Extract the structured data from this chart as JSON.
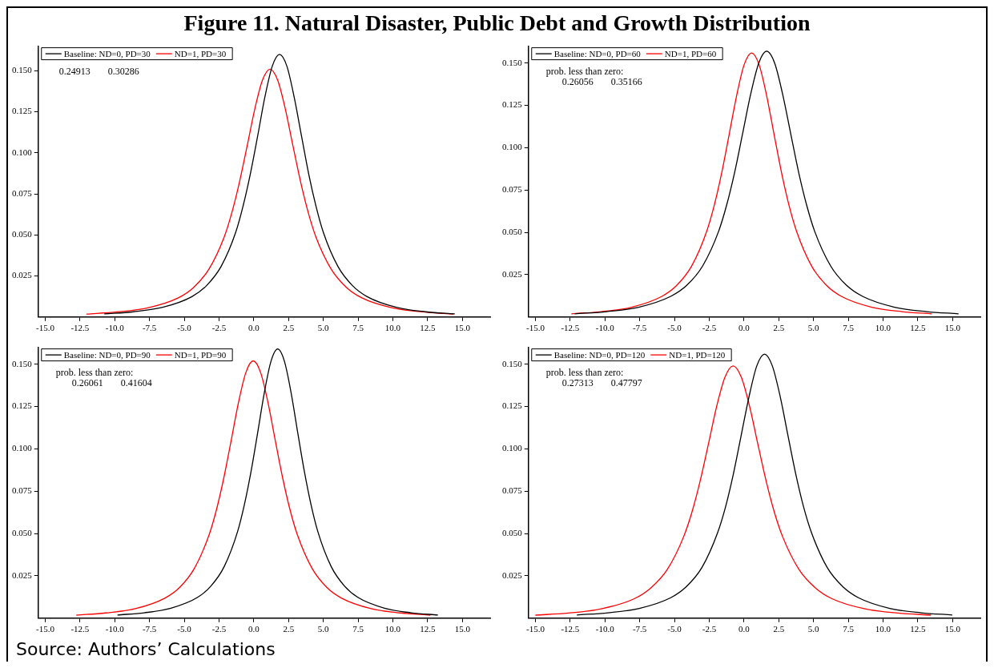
{
  "chart_data": [
    {
      "type": "line",
      "title": "Figure 11. Natural Disaster, Public Debt and Growth Distribution",
      "xlim": [
        -15.5,
        17
      ],
      "ylim": [
        0,
        0.165
      ],
      "xticks": [
        {
          "value": -15,
          "label": "-15.0"
        },
        {
          "value": -12.5,
          "label": "-12.5"
        },
        {
          "value": -10,
          "label": "-10.0"
        },
        {
          "value": -7.5,
          "label": "-7.5"
        },
        {
          "value": -5,
          "label": "-5.0"
        },
        {
          "value": -2.5,
          "label": "-2.5"
        },
        {
          "value": 0,
          "label": "0.0"
        },
        {
          "value": 2.5,
          "label": "2.5"
        },
        {
          "value": 5,
          "label": "5.0"
        },
        {
          "value": 7.5,
          "label": "7.5"
        },
        {
          "value": 10,
          "label": "10.0"
        },
        {
          "value": 12.5,
          "label": "12.5"
        },
        {
          "value": 15,
          "label": "15.0"
        }
      ],
      "yticks": [
        {
          "value": 0.025,
          "label": "0.025"
        },
        {
          "value": 0.05,
          "label": "0.050"
        },
        {
          "value": 0.075,
          "label": "0.075"
        },
        {
          "value": 0.1,
          "label": "0.100"
        },
        {
          "value": 0.125,
          "label": "0.125"
        },
        {
          "value": 0.15,
          "label": "0.150"
        }
      ],
      "grid": false,
      "legend": "top left",
      "marker": "none",
      "line_style": "solid",
      "annotations": [
        "0.24913",
        "0.30286"
      ],
      "series": [
        {
          "name": "Baseline: ND=0, PD=30",
          "color": "#000000",
          "x": [
            -10.75,
            -8.65,
            -6.55,
            -4.45,
            -3.4,
            -2.35,
            -1.3,
            -0.78,
            -0.25,
            0.28,
            0.8,
            1.33,
            1.85,
            2.38,
            2.9,
            3.43,
            3.95,
            4.48,
            5.0,
            6.05,
            7.1,
            8.15,
            10.25,
            12.35,
            14.45
          ],
          "values": [
            0.0019,
            0.0032,
            0.0059,
            0.0124,
            0.0191,
            0.0308,
            0.0516,
            0.0673,
            0.0871,
            0.1103,
            0.1341,
            0.1528,
            0.16,
            0.1528,
            0.1341,
            0.1103,
            0.0871,
            0.0673,
            0.0516,
            0.0308,
            0.0191,
            0.0124,
            0.0059,
            0.0032,
            0.0019
          ]
        },
        {
          "name": "ND=1, PD=30",
          "color": "#ff0000",
          "x": [
            -12.03,
            -9.83,
            -7.63,
            -5.43,
            -4.33,
            -3.23,
            -2.13,
            -1.58,
            -1.03,
            -0.48,
            0.07,
            0.62,
            1.17,
            1.72,
            2.27,
            2.82,
            3.37,
            3.92,
            4.47,
            5.57,
            6.67,
            7.77,
            9.97,
            12.17,
            14.37
          ],
          "values": [
            0.0018,
            0.0031,
            0.0056,
            0.0117,
            0.018,
            0.0291,
            0.0487,
            0.0635,
            0.0822,
            0.1041,
            0.1266,
            0.1442,
            0.151,
            0.1442,
            0.1266,
            0.1041,
            0.0822,
            0.0635,
            0.0487,
            0.0291,
            0.018,
            0.0117,
            0.0056,
            0.0031,
            0.0018
          ]
        }
      ]
    },
    {
      "type": "line",
      "xlim": [
        -15.5,
        17
      ],
      "ylim": [
        0,
        0.16
      ],
      "xticks": [
        {
          "value": -15,
          "label": "-15.0"
        },
        {
          "value": -12.5,
          "label": "-12.5"
        },
        {
          "value": -10,
          "label": "-10.0"
        },
        {
          "value": -7.5,
          "label": "-7.5"
        },
        {
          "value": -5,
          "label": "-5.0"
        },
        {
          "value": -2.5,
          "label": "-2.5"
        },
        {
          "value": 0,
          "label": "0.0"
        },
        {
          "value": 2.5,
          "label": "2.5"
        },
        {
          "value": 5,
          "label": "5.0"
        },
        {
          "value": 7.5,
          "label": "7.5"
        },
        {
          "value": 10,
          "label": "10.0"
        },
        {
          "value": 12.5,
          "label": "12.5"
        },
        {
          "value": 15,
          "label": "15.0"
        }
      ],
      "yticks": [
        {
          "value": 0.025,
          "label": "0.025"
        },
        {
          "value": 0.05,
          "label": "0.050"
        },
        {
          "value": 0.075,
          "label": "0.075"
        },
        {
          "value": 0.1,
          "label": "0.100"
        },
        {
          "value": 0.125,
          "label": "0.125"
        },
        {
          "value": 0.15,
          "label": "0.150"
        }
      ],
      "grid": false,
      "legend": "top left",
      "marker": "none",
      "line_style": "solid",
      "annotations": [
        "prob. less than zero:",
        "0.26056",
        "0.35166"
      ],
      "series": [
        {
          "name": "Baseline: ND=0, PD=60",
          "color": "#000000",
          "x": [
            -12.17,
            -9.87,
            -7.57,
            -5.27,
            -4.12,
            -2.97,
            -1.82,
            -1.25,
            -0.67,
            -0.1,
            0.48,
            1.06,
            1.63,
            2.21,
            2.78,
            3.36,
            3.93,
            4.51,
            5.08,
            6.23,
            7.38,
            8.53,
            10.83,
            13.13,
            15.43
          ],
          "values": [
            0.0019,
            0.0032,
            0.0058,
            0.0122,
            0.0187,
            0.0302,
            0.0507,
            0.066,
            0.0855,
            0.1083,
            0.1316,
            0.1499,
            0.157,
            0.1499,
            0.1316,
            0.1083,
            0.0855,
            0.066,
            0.0507,
            0.0302,
            0.0187,
            0.0122,
            0.0058,
            0.0032,
            0.0019
          ]
        },
        {
          "name": "ND=1, PD=60",
          "color": "#ff0000",
          "x": [
            -12.41,
            -10.25,
            -8.09,
            -5.93,
            -4.85,
            -3.77,
            -2.69,
            -2.15,
            -1.61,
            -1.07,
            -0.53,
            0.01,
            0.55,
            1.09,
            1.63,
            2.17,
            2.71,
            3.25,
            3.79,
            4.87,
            5.95,
            7.03,
            9.19,
            11.35,
            13.51
          ],
          "values": [
            0.0019,
            0.0032,
            0.0058,
            0.0121,
            0.0186,
            0.03,
            0.0504,
            0.0656,
            0.0849,
            0.1076,
            0.1307,
            0.149,
            0.156,
            0.149,
            0.1307,
            0.1076,
            0.0849,
            0.0656,
            0.0504,
            0.03,
            0.0186,
            0.0121,
            0.0058,
            0.0032,
            0.0019
          ]
        }
      ]
    },
    {
      "type": "line",
      "xlim": [
        -15.5,
        17
      ],
      "ylim": [
        0,
        0.16
      ],
      "xticks": [
        {
          "value": -15,
          "label": "-15.0"
        },
        {
          "value": -12.5,
          "label": "-12.5"
        },
        {
          "value": -10,
          "label": "-10.0"
        },
        {
          "value": -7.5,
          "label": "-7.5"
        },
        {
          "value": -5,
          "label": "-5.0"
        },
        {
          "value": -2.5,
          "label": "-2.5"
        },
        {
          "value": 0,
          "label": "0.0"
        },
        {
          "value": 2.5,
          "label": "2.5"
        },
        {
          "value": 5,
          "label": "5.0"
        },
        {
          "value": 7.5,
          "label": "7.5"
        },
        {
          "value": 10,
          "label": "10.0"
        },
        {
          "value": 12.5,
          "label": "12.5"
        },
        {
          "value": 15,
          "label": "15.0"
        }
      ],
      "yticks": [
        {
          "value": 0.025,
          "label": "0.025"
        },
        {
          "value": 0.05,
          "label": "0.050"
        },
        {
          "value": 0.075,
          "label": "0.075"
        },
        {
          "value": 0.1,
          "label": "0.100"
        },
        {
          "value": 0.125,
          "label": "0.125"
        },
        {
          "value": 0.15,
          "label": "0.150"
        }
      ],
      "grid": false,
      "legend": "top left",
      "marker": "none",
      "line_style": "solid",
      "annotations": [
        "prob. less than zero:",
        "0.26061",
        "0.41604"
      ],
      "series": [
        {
          "name": "Baseline: ND=0, PD=90",
          "color": "#000000",
          "x": [
            -9.8,
            -7.88,
            -5.96,
            -4.04,
            -3.08,
            -2.12,
            -1.16,
            -0.68,
            -0.2,
            0.28,
            0.76,
            1.24,
            1.72,
            2.2,
            2.68,
            3.16,
            3.64,
            4.12,
            4.6,
            5.56,
            6.52,
            7.48,
            9.4,
            11.32,
            13.24
          ],
          "values": [
            0.0019,
            0.0032,
            0.0059,
            0.0123,
            0.019,
            0.0306,
            0.0513,
            0.0669,
            0.0865,
            0.1096,
            0.1333,
            0.1518,
            0.159,
            0.1518,
            0.1333,
            0.1096,
            0.0865,
            0.0669,
            0.0513,
            0.0306,
            0.019,
            0.0123,
            0.0059,
            0.0032,
            0.0019
          ]
        },
        {
          "name": "ND=1, PD=90",
          "color": "#ff0000",
          "x": [
            -12.76,
            -10.64,
            -8.52,
            -6.4,
            -5.34,
            -4.28,
            -3.22,
            -2.69,
            -2.16,
            -1.63,
            -1.1,
            -0.57,
            -0.04,
            0.49,
            1.02,
            1.55,
            2.08,
            2.61,
            3.14,
            4.2,
            5.26,
            6.32,
            8.44,
            10.56,
            12.68
          ],
          "values": [
            0.0018,
            0.0031,
            0.0056,
            0.0118,
            0.0181,
            0.0293,
            0.0491,
            0.0639,
            0.0827,
            0.1048,
            0.1274,
            0.1451,
            0.152,
            0.1451,
            0.1274,
            0.1048,
            0.0827,
            0.0639,
            0.0491,
            0.0293,
            0.0181,
            0.0118,
            0.0056,
            0.0031,
            0.0018
          ]
        }
      ]
    },
    {
      "type": "line",
      "xlim": [
        -15.5,
        17
      ],
      "ylim": [
        0,
        0.16
      ],
      "xticks": [
        {
          "value": -15,
          "label": "-15.0"
        },
        {
          "value": -12.5,
          "label": "-12.5"
        },
        {
          "value": -10,
          "label": "-10.0"
        },
        {
          "value": -7.5,
          "label": "-7.5"
        },
        {
          "value": -5,
          "label": "-5.0"
        },
        {
          "value": -2.5,
          "label": "-2.5"
        },
        {
          "value": 0,
          "label": "0.0"
        },
        {
          "value": 2.5,
          "label": "2.5"
        },
        {
          "value": 5,
          "label": "5.0"
        },
        {
          "value": 7.5,
          "label": "7.5"
        },
        {
          "value": 10,
          "label": "10.0"
        },
        {
          "value": 12.5,
          "label": "12.5"
        },
        {
          "value": 15,
          "label": "15.0"
        }
      ],
      "yticks": [
        {
          "value": 0.025,
          "label": "0.025"
        },
        {
          "value": 0.05,
          "label": "0.050"
        },
        {
          "value": 0.075,
          "label": "0.075"
        },
        {
          "value": 0.1,
          "label": "0.100"
        },
        {
          "value": 0.125,
          "label": "0.125"
        },
        {
          "value": 0.15,
          "label": "0.150"
        }
      ],
      "grid": false,
      "legend": "top left",
      "marker": "none",
      "line_style": "solid",
      "annotations": [
        "prob. less than zero:",
        "0.27313",
        "0.47797",
        "Source: Authors’ Calculations"
      ],
      "series": [
        {
          "name": "Baseline: ND=0, PD=120",
          "color": "#000000",
          "x": [
            -12.02,
            -9.77,
            -7.52,
            -5.27,
            -4.15,
            -3.02,
            -1.9,
            -1.33,
            -0.77,
            -0.21,
            0.36,
            0.92,
            1.48,
            2.04,
            2.61,
            3.17,
            3.73,
            4.29,
            4.86,
            5.98,
            7.11,
            8.23,
            10.48,
            12.73,
            14.98
          ],
          "values": [
            0.0019,
            0.0032,
            0.0058,
            0.0121,
            0.0186,
            0.03,
            0.0504,
            0.0656,
            0.0849,
            0.1076,
            0.1307,
            0.149,
            0.156,
            0.149,
            0.1307,
            0.1076,
            0.0849,
            0.0656,
            0.0504,
            0.03,
            0.0186,
            0.0121,
            0.0058,
            0.0032,
            0.0019
          ]
        },
        {
          "name": "ND=1, PD=120",
          "color": "#ff0000",
          "x": [
            -15.0,
            -12.63,
            -10.26,
            -7.89,
            -6.71,
            -5.52,
            -4.34,
            -3.74,
            -3.15,
            -2.56,
            -1.97,
            -1.37,
            -0.78,
            -0.19,
            0.41,
            1.0,
            1.59,
            2.18,
            2.78,
            3.96,
            5.15,
            6.33,
            8.7,
            11.07,
            13.44
          ],
          "values": [
            0.0018,
            0.003,
            0.0055,
            0.0115,
            0.0178,
            0.0287,
            0.0481,
            0.0627,
            0.0811,
            0.1027,
            0.1249,
            0.1423,
            0.149,
            0.1423,
            0.1249,
            0.1027,
            0.0811,
            0.0627,
            0.0481,
            0.0287,
            0.0178,
            0.0115,
            0.0055,
            0.003,
            0.0018
          ]
        }
      ]
    }
  ]
}
